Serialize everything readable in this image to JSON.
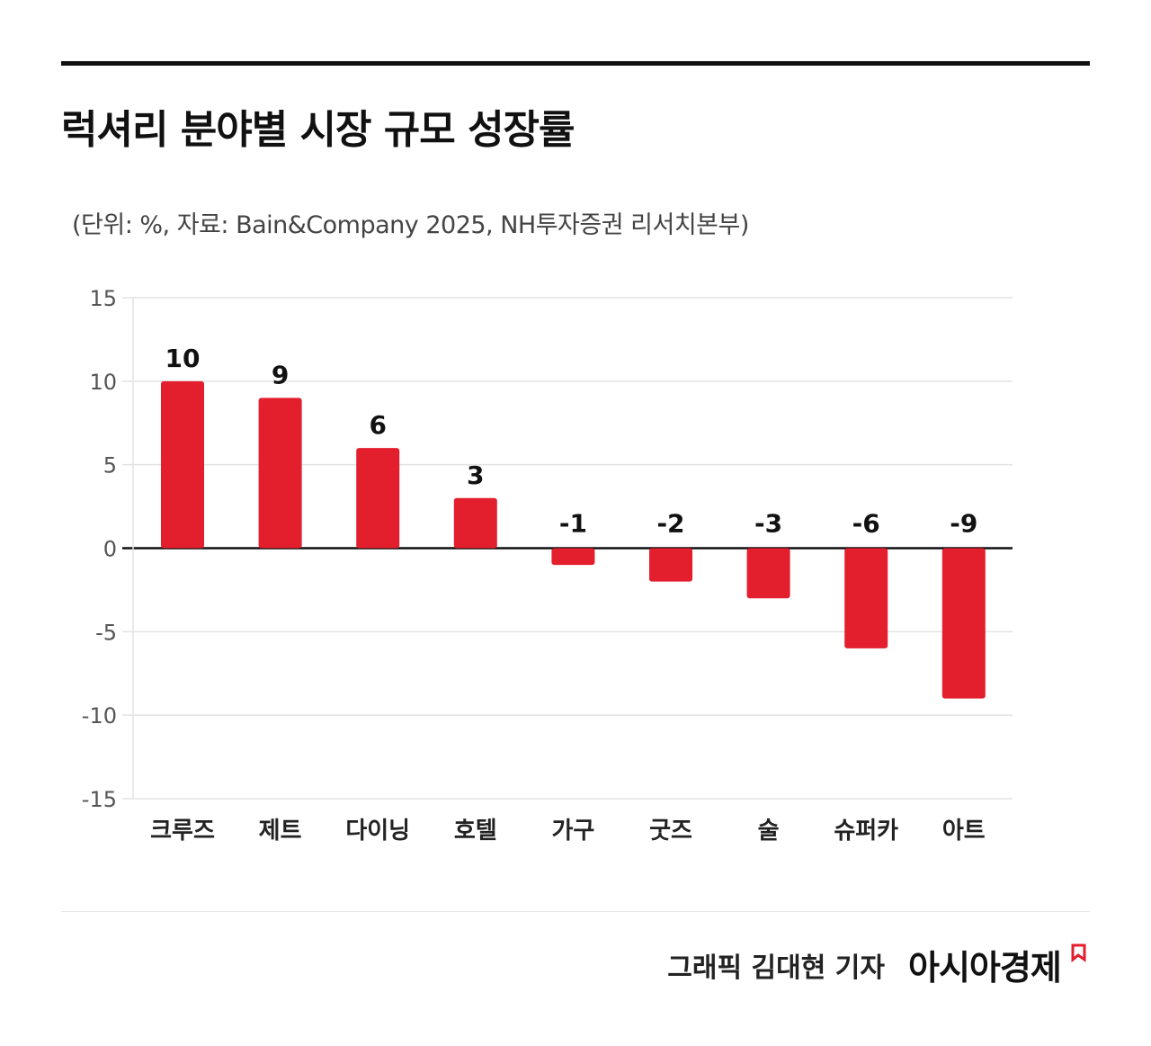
{
  "header": {
    "title": "럭셔리 분야별 시장 규모 성장률",
    "subtitle": "(단위: %, 자료: Bain&Company 2025, NH투자증권 리서치본부)"
  },
  "footer": {
    "credit": "그래픽  김대현 기자",
    "brand": "아시아경제",
    "brand_mark_icon": "red-bookmark-icon"
  },
  "chart_data": {
    "type": "bar",
    "categories": [
      "크루즈",
      "제트",
      "다이닝",
      "호텔",
      "가구",
      "굿즈",
      "술",
      "슈퍼카",
      "아트"
    ],
    "values": [
      10,
      9,
      6,
      3,
      -1,
      -2,
      -3,
      -6,
      -9
    ],
    "data_labels": [
      "10",
      "9",
      "6",
      "3",
      "-1",
      "-2",
      "-3",
      "-6",
      "-9"
    ],
    "ylim": [
      -15,
      15
    ],
    "yticks": [
      15,
      10,
      5,
      0,
      -5,
      -10,
      -15
    ],
    "ytick_labels": [
      "15",
      "10",
      "5",
      "0",
      "-5",
      "-10",
      "-15"
    ],
    "grid": true,
    "legend": "none",
    "bar_color": "#e31e2d",
    "grid_color": "#e3e3e3",
    "zero_line_color": "#111111"
  }
}
